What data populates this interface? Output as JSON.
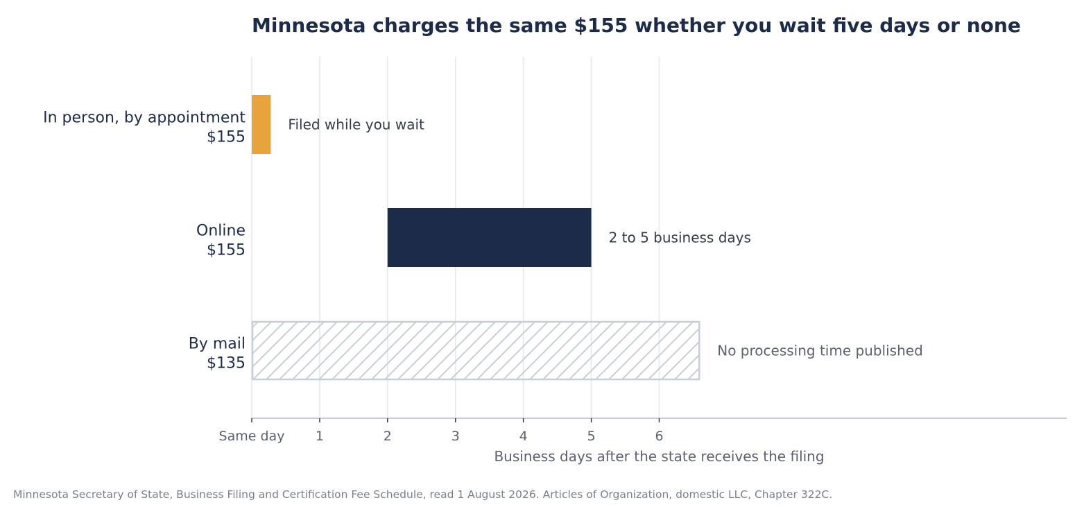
{
  "chart_data": {
    "type": "bar",
    "orientation": "horizontal",
    "title": "Minnesota charges the same $155 whether you wait five days or none",
    "xlabel": "Business days after the state receives the filing",
    "ylabel": "",
    "xlim": [
      0,
      12
    ],
    "xticks": [
      {
        "value": 0,
        "label": "Same day"
      },
      {
        "value": 1,
        "label": "1"
      },
      {
        "value": 2,
        "label": "2"
      },
      {
        "value": 3,
        "label": "3"
      },
      {
        "value": 4,
        "label": "4"
      },
      {
        "value": 5,
        "label": "5"
      },
      {
        "value": 6,
        "label": "6"
      }
    ],
    "grid": "vertical",
    "categories": [
      {
        "name": "In person, by appointment",
        "fee": "$155",
        "start": 0,
        "end": 0.28,
        "annotation": "Filed while you wait",
        "style": "solid",
        "color": "#e8a43c",
        "annotation_color": "#333a45"
      },
      {
        "name": "Online",
        "fee": "$155",
        "start": 2,
        "end": 5,
        "annotation": "2 to 5 business days",
        "style": "solid",
        "color": "#1c2b4a",
        "annotation_color": "#333a45"
      },
      {
        "name": "By mail",
        "fee": "$135",
        "start": 0,
        "end": 6.6,
        "annotation": "No processing time published",
        "style": "hatched",
        "color": "#c8ced8",
        "annotation_color": "#5c6170"
      }
    ]
  },
  "source": "Minnesota Secretary of State, Business Filing and Certification Fee Schedule, read 1 August 2026. Articles of Organization, domestic LLC, Chapter 322C."
}
